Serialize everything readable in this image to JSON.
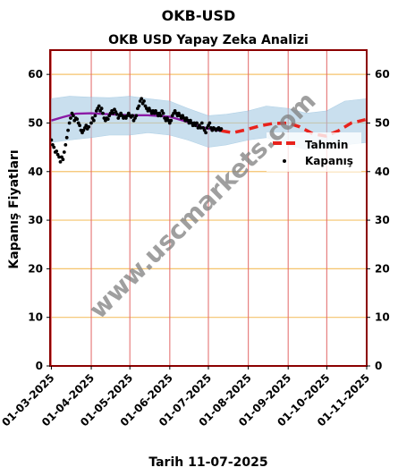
{
  "chart_data": {
    "type": "line",
    "page_title": "OKB-USD",
    "title": "OKB USD Yapay Zeka Analizi",
    "xlabel": "Tarih 11-07-2025",
    "ylabel": "Kapanış Fiyatları",
    "ylim": [
      0,
      65
    ],
    "xlim": [
      "2025-02-28",
      "2025-11-01"
    ],
    "y_ticks": [
      0,
      10,
      20,
      30,
      40,
      50,
      60
    ],
    "x_ticks": [
      "2025-03-01",
      "2025-04-01",
      "2025-05-01",
      "2025-06-01",
      "2025-07-01",
      "2025-08-01",
      "2025-09-01",
      "2025-10-01",
      "2025-11-01"
    ],
    "x_tick_labels": [
      "01-03-2025",
      "01-04-2025",
      "01-05-2025",
      "01-06-2025",
      "01-07-2025",
      "01-08-2025",
      "01-09-2025",
      "01-10-2025",
      "01-11-2025"
    ],
    "grid": true,
    "legend_position": "center-right",
    "watermark": "www.uscmarkets.com",
    "colors": {
      "band": "#a6cbe3",
      "moving_average": "#8b1aa5",
      "forecast": "#e8221c",
      "close": "#000000",
      "hgrid": "#f5c36b",
      "vgrid": "#e36a6a",
      "frame": "#8b0000"
    },
    "series": [
      {
        "name": "Tahmin",
        "style": "dashed-line",
        "points": [
          [
            "2025-07-11",
            48.4
          ],
          [
            "2025-07-20",
            48.0
          ],
          [
            "2025-07-30",
            48.6
          ],
          [
            "2025-08-10",
            49.4
          ],
          [
            "2025-08-20",
            49.9
          ],
          [
            "2025-09-01",
            50.0
          ],
          [
            "2025-09-10",
            49.2
          ],
          [
            "2025-09-20",
            47.8
          ],
          [
            "2025-09-30",
            47.3
          ],
          [
            "2025-10-10",
            48.4
          ],
          [
            "2025-10-20",
            50.0
          ],
          [
            "2025-10-31",
            50.7
          ]
        ]
      },
      {
        "name": "Kapanış",
        "style": "dots",
        "points": [
          [
            "2025-03-01",
            46.5
          ],
          [
            "2025-03-02",
            45.5
          ],
          [
            "2025-03-03",
            45.0
          ],
          [
            "2025-03-04",
            44.0
          ],
          [
            "2025-03-05",
            44.2
          ],
          [
            "2025-03-06",
            43.5
          ],
          [
            "2025-03-07",
            43.0
          ],
          [
            "2025-03-08",
            42.0
          ],
          [
            "2025-03-09",
            43.0
          ],
          [
            "2025-03-10",
            42.5
          ],
          [
            "2025-03-11",
            44.0
          ],
          [
            "2025-03-12",
            45.5
          ],
          [
            "2025-03-13",
            47.0
          ],
          [
            "2025-03-14",
            48.5
          ],
          [
            "2025-03-15",
            50.0
          ],
          [
            "2025-03-16",
            51.0
          ],
          [
            "2025-03-17",
            52.0
          ],
          [
            "2025-03-18",
            51.5
          ],
          [
            "2025-03-19",
            50.5
          ],
          [
            "2025-03-20",
            51.0
          ],
          [
            "2025-03-21",
            50.8
          ],
          [
            "2025-03-22",
            50.0
          ],
          [
            "2025-03-23",
            49.5
          ],
          [
            "2025-03-24",
            48.5
          ],
          [
            "2025-03-25",
            48.0
          ],
          [
            "2025-03-26",
            48.5
          ],
          [
            "2025-03-27",
            49.0
          ],
          [
            "2025-03-28",
            49.5
          ],
          [
            "2025-03-29",
            48.8
          ],
          [
            "2025-03-30",
            49.2
          ],
          [
            "2025-04-01",
            50.0
          ],
          [
            "2025-04-02",
            51.0
          ],
          [
            "2025-04-03",
            50.5
          ],
          [
            "2025-04-04",
            51.5
          ],
          [
            "2025-04-05",
            52.5
          ],
          [
            "2025-04-06",
            53.0
          ],
          [
            "2025-04-07",
            53.5
          ],
          [
            "2025-04-08",
            52.5
          ],
          [
            "2025-04-09",
            53.0
          ],
          [
            "2025-04-10",
            52.0
          ],
          [
            "2025-04-11",
            51.0
          ],
          [
            "2025-04-12",
            50.5
          ],
          [
            "2025-04-13",
            51.0
          ],
          [
            "2025-04-14",
            50.8
          ],
          [
            "2025-04-15",
            51.5
          ],
          [
            "2025-04-16",
            52.0
          ],
          [
            "2025-04-17",
            52.5
          ],
          [
            "2025-04-18",
            52.0
          ],
          [
            "2025-04-19",
            52.8
          ],
          [
            "2025-04-20",
            52.3
          ],
          [
            "2025-04-21",
            51.8
          ],
          [
            "2025-04-22",
            51.0
          ],
          [
            "2025-04-23",
            51.5
          ],
          [
            "2025-04-24",
            52.0
          ],
          [
            "2025-04-25",
            51.5
          ],
          [
            "2025-04-26",
            51.0
          ],
          [
            "2025-04-27",
            51.3
          ],
          [
            "2025-04-28",
            51.0
          ],
          [
            "2025-04-29",
            51.5
          ],
          [
            "2025-04-30",
            52.0
          ],
          [
            "2025-05-01",
            51.5
          ],
          [
            "2025-05-02",
            51.2
          ],
          [
            "2025-05-03",
            51.5
          ],
          [
            "2025-05-04",
            50.5
          ],
          [
            "2025-05-05",
            51.0
          ],
          [
            "2025-05-06",
            51.5
          ],
          [
            "2025-05-07",
            53.0
          ],
          [
            "2025-05-08",
            53.5
          ],
          [
            "2025-05-09",
            54.5
          ],
          [
            "2025-05-10",
            55.0
          ],
          [
            "2025-05-11",
            54.0
          ],
          [
            "2025-05-12",
            54.5
          ],
          [
            "2025-05-13",
            53.5
          ],
          [
            "2025-05-14",
            53.0
          ],
          [
            "2025-05-15",
            52.5
          ],
          [
            "2025-05-16",
            53.0
          ],
          [
            "2025-05-17",
            52.5
          ],
          [
            "2025-05-18",
            52.0
          ],
          [
            "2025-05-19",
            52.5
          ],
          [
            "2025-05-20",
            52.0
          ],
          [
            "2025-05-21",
            52.5
          ],
          [
            "2025-05-22",
            52.0
          ],
          [
            "2025-05-23",
            51.5
          ],
          [
            "2025-05-24",
            52.0
          ],
          [
            "2025-05-25",
            51.5
          ],
          [
            "2025-05-26",
            52.5
          ],
          [
            "2025-05-27",
            52.0
          ],
          [
            "2025-05-28",
            51.0
          ],
          [
            "2025-05-29",
            50.5
          ],
          [
            "2025-05-30",
            51.0
          ],
          [
            "2025-05-31",
            50.5
          ],
          [
            "2025-06-01",
            50.0
          ],
          [
            "2025-06-02",
            50.5
          ],
          [
            "2025-06-03",
            51.5
          ],
          [
            "2025-06-04",
            52.0
          ],
          [
            "2025-06-05",
            52.5
          ],
          [
            "2025-06-06",
            52.0
          ],
          [
            "2025-06-07",
            51.5
          ],
          [
            "2025-06-08",
            52.0
          ],
          [
            "2025-06-09",
            51.5
          ],
          [
            "2025-06-10",
            51.0
          ],
          [
            "2025-06-11",
            51.5
          ],
          [
            "2025-06-12",
            51.0
          ],
          [
            "2025-06-13",
            50.5
          ],
          [
            "2025-06-14",
            51.0
          ],
          [
            "2025-06-15",
            50.5
          ],
          [
            "2025-06-16",
            50.0
          ],
          [
            "2025-06-17",
            50.5
          ],
          [
            "2025-06-18",
            50.0
          ],
          [
            "2025-06-19",
            49.5
          ],
          [
            "2025-06-20",
            50.0
          ],
          [
            "2025-06-21",
            49.5
          ],
          [
            "2025-06-22",
            50.0
          ],
          [
            "2025-06-23",
            49.0
          ],
          [
            "2025-06-24",
            49.5
          ],
          [
            "2025-06-25",
            49.0
          ],
          [
            "2025-06-26",
            50.0
          ],
          [
            "2025-06-27",
            49.0
          ],
          [
            "2025-06-28",
            48.5
          ],
          [
            "2025-06-29",
            48.0
          ],
          [
            "2025-06-30",
            49.0
          ],
          [
            "2025-07-01",
            49.5
          ],
          [
            "2025-07-02",
            50.0
          ],
          [
            "2025-07-03",
            49.0
          ],
          [
            "2025-07-04",
            48.5
          ],
          [
            "2025-07-05",
            49.0
          ],
          [
            "2025-07-06",
            48.8
          ],
          [
            "2025-07-07",
            48.5
          ],
          [
            "2025-07-08",
            48.8
          ],
          [
            "2025-07-09",
            49.0
          ],
          [
            "2025-07-10",
            48.5
          ],
          [
            "2025-07-11",
            48.8
          ]
        ]
      },
      {
        "name": "",
        "style": "solid-line",
        "points": [
          [
            "2025-03-01",
            50.5
          ],
          [
            "2025-03-10",
            51.2
          ],
          [
            "2025-03-20",
            51.9
          ],
          [
            "2025-04-01",
            52.0
          ],
          [
            "2025-04-15",
            51.8
          ],
          [
            "2025-05-01",
            51.6
          ],
          [
            "2025-05-15",
            51.6
          ],
          [
            "2025-06-01",
            51.3
          ],
          [
            "2025-06-15",
            50.2
          ],
          [
            "2025-06-25",
            49.2
          ],
          [
            "2025-07-05",
            48.6
          ],
          [
            "2025-07-11",
            48.4
          ]
        ]
      },
      {
        "name": "",
        "style": "band",
        "x": [
          "2025-03-01",
          "2025-03-15",
          "2025-04-01",
          "2025-04-15",
          "2025-05-01",
          "2025-05-15",
          "2025-06-01",
          "2025-06-15",
          "2025-07-01",
          "2025-07-15",
          "2025-08-01",
          "2025-08-15",
          "2025-09-01",
          "2025-09-15",
          "2025-10-01",
          "2025-10-15",
          "2025-11-01"
        ],
        "upper": [
          55.0,
          55.5,
          55.3,
          55.2,
          55.5,
          55.0,
          54.5,
          53.0,
          51.5,
          51.8,
          52.5,
          53.5,
          53.0,
          52.0,
          52.5,
          54.5,
          55.0
        ],
        "lower": [
          46.0,
          46.5,
          47.0,
          47.5,
          47.5,
          48.0,
          47.5,
          46.5,
          45.0,
          45.5,
          46.5,
          47.0,
          45.5,
          44.5,
          45.0,
          45.5,
          46.0
        ]
      }
    ]
  }
}
